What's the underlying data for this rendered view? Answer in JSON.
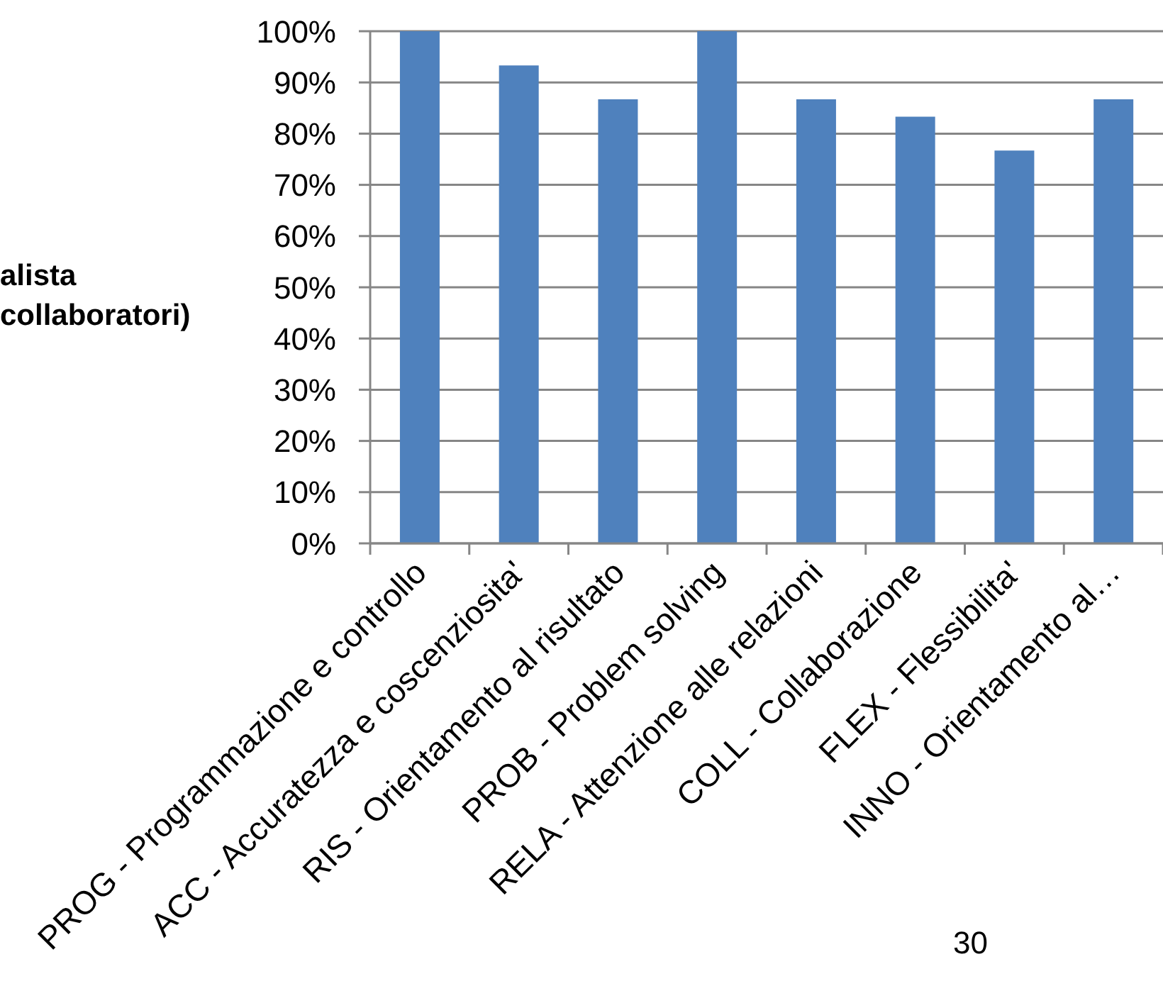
{
  "chart_data": {
    "type": "bar",
    "title": "alista\ncollaboratori)",
    "categories": [
      "PROG - Programmazione e controllo",
      "ACC - Accuratezza e coscenziosita'",
      "RIS - Orientamento al risultato",
      "PROB - Problem solving",
      "RELA - Attenzione alle relazioni",
      "COLL - Collaborazione",
      "FLEX - Flessibilita'",
      "INNO - Orientamento al…"
    ],
    "values": [
      100,
      93.3,
      86.7,
      100,
      86.7,
      83.3,
      76.7,
      86.7
    ],
    "color": "#4f81bd",
    "ylim": [
      0,
      100
    ],
    "yticks": [
      {
        "value": 0,
        "label": "0%"
      },
      {
        "value": 10,
        "label": "10%"
      },
      {
        "value": 20,
        "label": "20%"
      },
      {
        "value": 30,
        "label": "30%"
      },
      {
        "value": 40,
        "label": "40%"
      },
      {
        "value": 50,
        "label": "50%"
      },
      {
        "value": 60,
        "label": "60%"
      },
      {
        "value": 70,
        "label": "70%"
      },
      {
        "value": 80,
        "label": "80%"
      },
      {
        "value": 90,
        "label": "90%"
      },
      {
        "value": 100,
        "label": "100%"
      }
    ],
    "grid": "y",
    "annotations": [
      "30"
    ]
  }
}
